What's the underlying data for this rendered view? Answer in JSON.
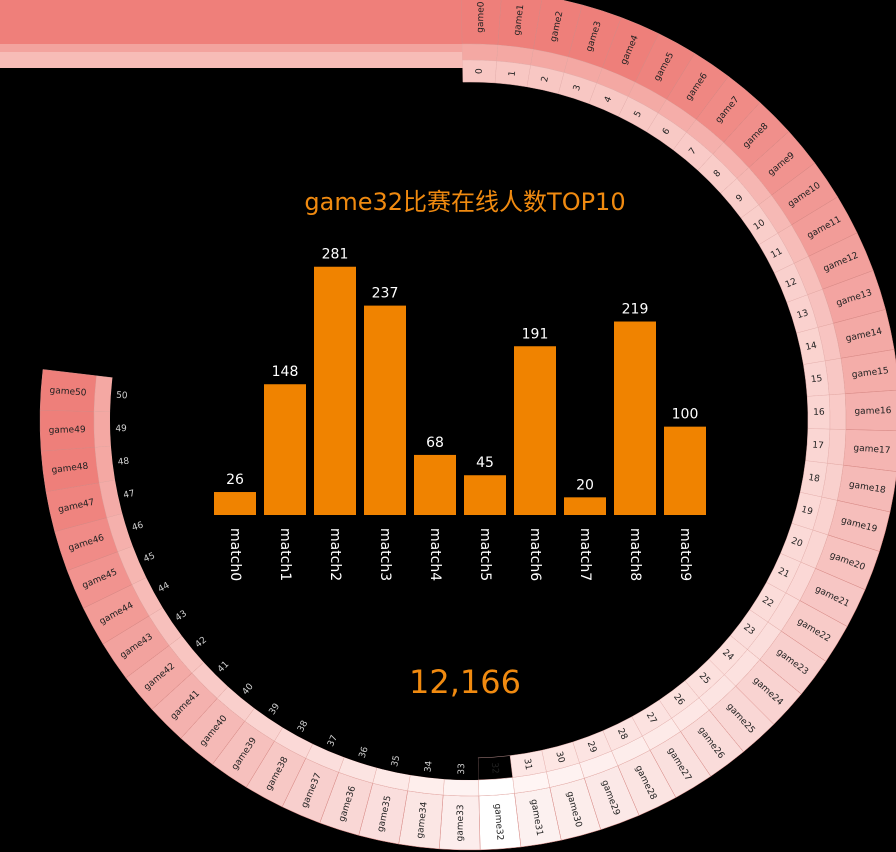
{
  "chart_data": [
    {
      "type": "bar",
      "title": "game32比赛在线人数TOP10",
      "categories": [
        "match0",
        "match1",
        "match2",
        "match3",
        "match4",
        "match5",
        "match6",
        "match7",
        "match8",
        "match9"
      ],
      "values": [
        26,
        148,
        281,
        237,
        68,
        45,
        191,
        20,
        219,
        100
      ],
      "ylim": [
        0,
        300
      ],
      "grid": false,
      "colors": {
        "bar": "#f08300"
      }
    },
    {
      "type": "ring",
      "description_labels": "game ring selector",
      "outer_labels": [
        "game0",
        "game1",
        "game2",
        "game3",
        "game4",
        "game5",
        "game6",
        "game7",
        "game8",
        "game9",
        "game10",
        "game11",
        "game12",
        "game13",
        "game14",
        "game15",
        "game16",
        "game17",
        "game18",
        "game19",
        "game20",
        "game21",
        "game22",
        "game23",
        "game24",
        "game25",
        "game26",
        "game27",
        "game28",
        "game29",
        "game30",
        "game31",
        "game32",
        "game33",
        "game34",
        "game35",
        "game36",
        "game37",
        "game38",
        "game39",
        "game40",
        "game41",
        "game42",
        "game43",
        "game44",
        "game45",
        "game46",
        "game47",
        "game48",
        "game49",
        "game50"
      ],
      "inner_labels": [
        "0",
        "1",
        "2",
        "3",
        "4",
        "5",
        "6",
        "7",
        "8",
        "9",
        "10",
        "11",
        "12",
        "13",
        "14",
        "15",
        "16",
        "17",
        "18",
        "19",
        "20",
        "21",
        "22",
        "23",
        "24",
        "25",
        "26",
        "27",
        "28",
        "29",
        "30",
        "31",
        "32",
        "33",
        "34",
        "35",
        "36",
        "37",
        "38",
        "39",
        "40",
        "41",
        "42",
        "43",
        "44",
        "45",
        "46",
        "47",
        "48",
        "49",
        "50"
      ],
      "selected": 32,
      "colors": {
        "strong": "#ee7f7a",
        "light": "#fdf5f4",
        "selected": "#ffffff"
      }
    }
  ],
  "total": "12,166"
}
